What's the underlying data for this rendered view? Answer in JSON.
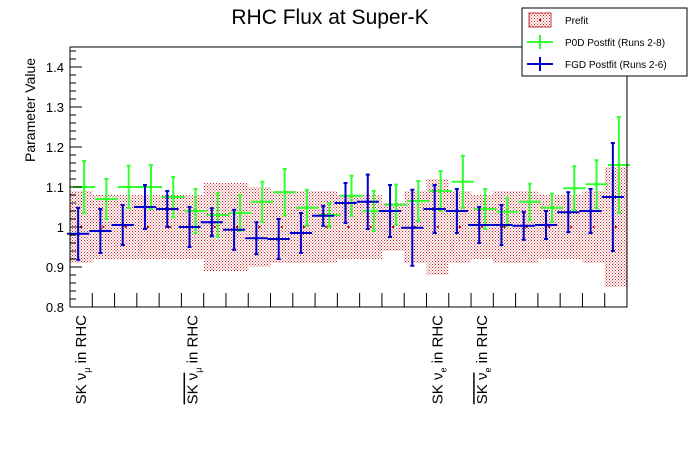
{
  "chart_data": {
    "type": "scatter",
    "title": "RHC Flux at Super-K",
    "xlabel": "",
    "ylabel": "Parameter Value",
    "ylim": [
      0.8,
      1.45
    ],
    "yticks": [
      "0.8",
      "0.9",
      "1",
      "1.1",
      "1.2",
      "1.3",
      "1.4"
    ],
    "n_bins": 25,
    "xtick_labels": [
      {
        "bin": 0,
        "text": "SK ν",
        "sub": "μ",
        "tail": " in RHC",
        "bar": false
      },
      {
        "bin": 5,
        "text": "SK ν",
        "sub": "μ",
        "tail": " in RHC",
        "bar": true
      },
      {
        "bin": 16,
        "text": "SK ν",
        "sub": "e",
        "tail": " in RHC",
        "bar": false
      },
      {
        "bin": 18,
        "text": "SK ν",
        "sub": "e",
        "tail": " in RHC",
        "bar": true
      }
    ],
    "legend": {
      "placement": "top-right",
      "entries": [
        "Prefit",
        "P0D Postfit (Runs 2-8)",
        "FGD Postfit (Runs 2-6)"
      ]
    },
    "series": [
      {
        "name": "Prefit",
        "color": "#cc0000",
        "values": [
          1.0,
          1.0,
          1.0,
          1.0,
          1.0,
          1.0,
          1.0,
          1.0,
          1.0,
          1.0,
          1.0,
          1.0,
          1.0,
          1.0,
          1.0,
          1.0,
          1.0,
          1.0,
          1.0,
          1.0,
          1.0,
          1.0,
          1.0,
          1.0,
          1.0
        ],
        "errors": [
          0.09,
          0.08,
          0.08,
          0.08,
          0.08,
          0.08,
          0.11,
          0.11,
          0.1,
          0.09,
          0.09,
          0.09,
          0.08,
          0.08,
          0.06,
          0.09,
          0.12,
          0.09,
          0.08,
          0.09,
          0.09,
          0.08,
          0.08,
          0.09,
          0.15
        ]
      },
      {
        "name": "P0D Postfit (Runs 2-8)",
        "color": "#33ff33",
        "values": [
          1.1,
          1.07,
          1.1,
          1.1,
          1.075,
          1.04,
          1.03,
          1.035,
          1.063,
          1.087,
          1.048,
          1.03,
          1.078,
          1.04,
          1.056,
          1.065,
          1.09,
          1.113,
          1.045,
          1.038,
          1.063,
          1.048,
          1.097,
          1.107,
          1.155
        ],
        "errors": [
          0.065,
          0.05,
          0.053,
          0.055,
          0.05,
          0.055,
          0.055,
          0.045,
          0.05,
          0.058,
          0.045,
          0.03,
          0.05,
          0.05,
          0.05,
          0.05,
          0.05,
          0.065,
          0.05,
          0.035,
          0.045,
          0.035,
          0.055,
          0.06,
          0.12
        ]
      },
      {
        "name": "FGD Postfit (Runs 2-6)",
        "color": "#0000cc",
        "values": [
          0.983,
          0.99,
          1.005,
          1.05,
          1.045,
          1.0,
          1.012,
          0.993,
          0.972,
          0.97,
          0.985,
          1.028,
          1.06,
          1.063,
          1.04,
          0.998,
          1.045,
          1.04,
          1.005,
          1.005,
          1.003,
          1.005,
          1.037,
          1.04,
          1.075
        ],
        "errors": [
          0.065,
          0.055,
          0.05,
          0.055,
          0.045,
          0.05,
          0.035,
          0.05,
          0.04,
          0.05,
          0.05,
          0.025,
          0.05,
          0.068,
          0.065,
          0.095,
          0.06,
          0.055,
          0.045,
          0.05,
          0.035,
          0.035,
          0.05,
          0.055,
          0.135
        ]
      }
    ]
  }
}
